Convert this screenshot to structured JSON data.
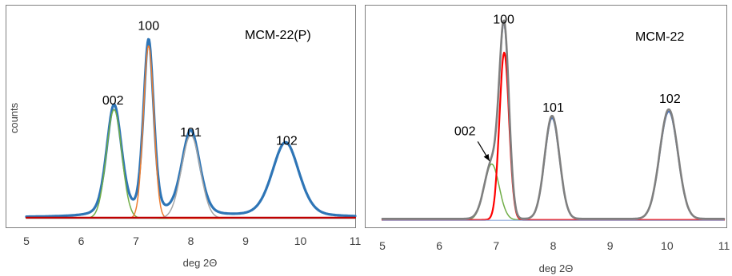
{
  "chart_data": [
    {
      "type": "line",
      "sample_label": "MCM-22(P)",
      "xlabel": "deg 2Θ",
      "ylabel": "counts",
      "xlim": [
        5,
        11
      ],
      "ylim": [
        0,
        100
      ],
      "x_ticks": [
        "5",
        "6",
        "7",
        "8",
        "9",
        "10",
        "11"
      ],
      "annotations": [
        {
          "text": "002",
          "x": 6.58,
          "y": 54
        },
        {
          "text": "100",
          "x": 7.23,
          "y": 89
        },
        {
          "text": "101",
          "x": 8.0,
          "y": 39
        },
        {
          "text": "102",
          "x": 9.75,
          "y": 35
        }
      ],
      "series": [
        {
          "color": "#2e75b6",
          "width": 3.2,
          "baseline": 1.0,
          "shape": "pv",
          "peaks": [
            [
              6.6,
              52,
              0.14
            ],
            [
              7.23,
              82,
              0.095
            ],
            [
              8.0,
              40,
              0.17
            ],
            [
              9.73,
              35,
              0.25
            ]
          ]
        },
        {
          "color": "#70ad47",
          "width": 1.5,
          "baseline": 0.5,
          "shape": "g",
          "peaks": [
            [
              6.6,
              51,
              0.14
            ]
          ]
        },
        {
          "color": "#ed7d31",
          "width": 1.5,
          "baseline": 0.5,
          "shape": "g",
          "peaks": [
            [
              7.23,
              81,
              0.095
            ]
          ]
        },
        {
          "color": "#a5a5a5",
          "width": 1.5,
          "baseline": 0.5,
          "shape": "g",
          "peaks": [
            [
              8.0,
              39,
              0.17
            ]
          ]
        },
        {
          "color": "#c00000",
          "width": 2.2,
          "baseline": 0.8,
          "shape": "g",
          "peaks": []
        }
      ]
    },
    {
      "type": "line",
      "sample_label": "MCM-22",
      "xlabel": "deg 2Θ",
      "ylabel": "",
      "xlim": [
        5,
        11
      ],
      "ylim": [
        0,
        100
      ],
      "x_ticks": [
        "5",
        "6",
        "7",
        "8",
        "9",
        "10",
        "11"
      ],
      "annotations": [
        {
          "text": "100",
          "x": 7.13,
          "y": 92
        },
        {
          "text": "101",
          "x": 8.0,
          "y": 51
        },
        {
          "text": "102",
          "x": 10.05,
          "y": 55
        },
        {
          "text": "002",
          "x": 6.45,
          "y": 40,
          "arrow_to": [
            6.88,
            28
          ]
        }
      ],
      "series": [
        {
          "color": "#4472c4",
          "width": 2.0,
          "baseline": 1.0,
          "shape": "g",
          "peaks": [
            [
              6.92,
              26,
              0.13
            ],
            [
              7.14,
              85,
              0.085
            ],
            [
              7.98,
              47,
              0.13
            ],
            [
              10.03,
              50,
              0.16
            ]
          ]
        },
        {
          "color": "#70ad47",
          "width": 1.5,
          "baseline": 0.5,
          "shape": "g",
          "peaks": [
            [
              6.92,
              26,
              0.13
            ]
          ]
        },
        {
          "color": "#ff0000",
          "width": 2.2,
          "baseline": 0.5,
          "shape": "g",
          "peaks": [
            [
              7.14,
              78,
              0.085
            ]
          ]
        },
        {
          "color": "#8faadc",
          "width": 1.2,
          "baseline": 0.3,
          "shape": "g",
          "peaks": []
        },
        {
          "color": "#7f7f7f",
          "width": 2.6,
          "baseline": 1.0,
          "shape": "g",
          "peaks": [
            [
              6.92,
              26,
              0.13
            ],
            [
              7.14,
              86,
              0.085
            ],
            [
              7.98,
              48,
              0.13
            ],
            [
              10.03,
              51,
              0.16
            ]
          ]
        }
      ]
    }
  ]
}
